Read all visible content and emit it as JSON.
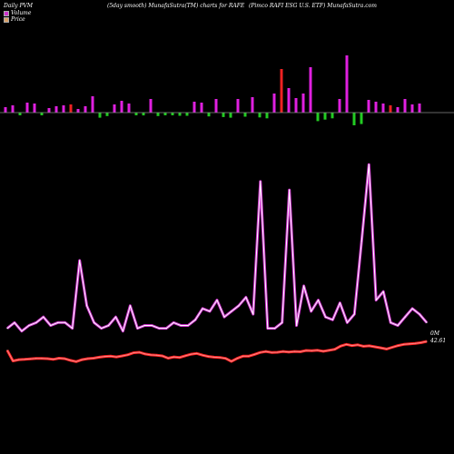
{
  "header": {
    "left": "Daily PVM",
    "center": "(5day smooth) MunafaSutra(TM) charts for RAFE",
    "right": "(Pimco  RAFI ESG U.S. ETF) MunafaSutra.com"
  },
  "legend": {
    "volume": "Volume",
    "price": "Price"
  },
  "last_labels": {
    "volume": "0M",
    "price": "42.61"
  },
  "colors": {
    "background": "#000000",
    "volume_line": "#cc33cc",
    "price_line": "#ff2222",
    "bar_up": "#e020e0",
    "bar_down": "#22cc22",
    "bar_red": "#ee2222",
    "axis": "#888888"
  },
  "chart_data": {
    "type": "line",
    "title": "(5day smooth) MunafaSutra(TM) charts for RAFE",
    "series": [
      {
        "name": "Volume",
        "values": [
          4,
          6,
          3,
          5,
          6,
          8,
          5,
          6,
          6,
          4,
          28,
          12,
          6,
          4,
          5,
          8,
          3,
          12,
          4,
          5,
          5,
          4,
          4,
          6,
          5,
          5,
          7,
          11,
          10,
          14,
          8,
          10,
          12,
          15,
          9,
          56,
          4,
          4,
          6,
          53,
          5,
          19,
          10,
          14,
          8,
          7,
          13,
          6,
          9,
          35,
          62,
          14,
          17,
          6,
          5,
          8,
          11,
          9,
          6
        ]
      },
      {
        "name": "Price",
        "values": [
          42.25,
          41.82,
          41.87,
          41.88,
          41.9,
          41.92,
          41.92,
          41.91,
          41.88,
          41.93,
          41.91,
          41.84,
          41.79,
          41.87,
          41.91,
          41.93,
          41.97,
          42.0,
          42.01,
          41.98,
          42.02,
          42.07,
          42.15,
          42.17,
          42.1,
          42.06,
          42.05,
          42.02,
          41.93,
          41.98,
          41.96,
          42.03,
          42.09,
          42.12,
          42.05,
          42.0,
          41.97,
          41.96,
          41.92,
          41.8,
          41.92,
          42.01,
          42.01,
          42.08,
          42.16,
          42.2,
          42.16,
          42.17,
          42.2,
          42.18,
          42.2,
          42.19,
          42.24,
          42.23,
          42.25,
          42.21,
          42.25,
          42.29,
          42.42,
          42.49,
          42.44,
          42.47,
          42.41,
          42.43,
          42.39,
          42.35,
          42.3,
          42.37,
          42.44,
          42.49,
          42.51,
          42.53,
          42.56,
          42.61
        ]
      }
    ],
    "volume_bars": {
      "heights": [
        6,
        8,
        4,
        11,
        10,
        6,
        5,
        7,
        8,
        9,
        4,
        7,
        18,
        16,
        11,
        9,
        13,
        10,
        6,
        9,
        15,
        11,
        8,
        7,
        10,
        10,
        12,
        11,
        12,
        15,
        14,
        16,
        15,
        13,
        17,
        15,
        18,
        21,
        48,
        27,
        16,
        21,
        50,
        27,
        22,
        18,
        15,
        63,
        40,
        36,
        14,
        12,
        10,
        8,
        6,
        15,
        9,
        10
      ],
      "colors": [
        "up",
        "up",
        "down",
        "up",
        "up",
        "down",
        "up",
        "up",
        "up",
        "red",
        "up",
        "up",
        "up",
        "down",
        "down",
        "up",
        "up",
        "up",
        "down",
        "down",
        "up",
        "down",
        "down",
        "down",
        "down",
        "down",
        "up",
        "up",
        "down",
        "up",
        "down",
        "down",
        "up",
        "down",
        "up",
        "down",
        "down",
        "up",
        "red",
        "up",
        "up",
        "up",
        "up",
        "down",
        "down",
        "down",
        "up",
        "up",
        "down",
        "down",
        "up",
        "up",
        "up",
        "red",
        "up",
        "up",
        "up",
        "up"
      ]
    }
  }
}
